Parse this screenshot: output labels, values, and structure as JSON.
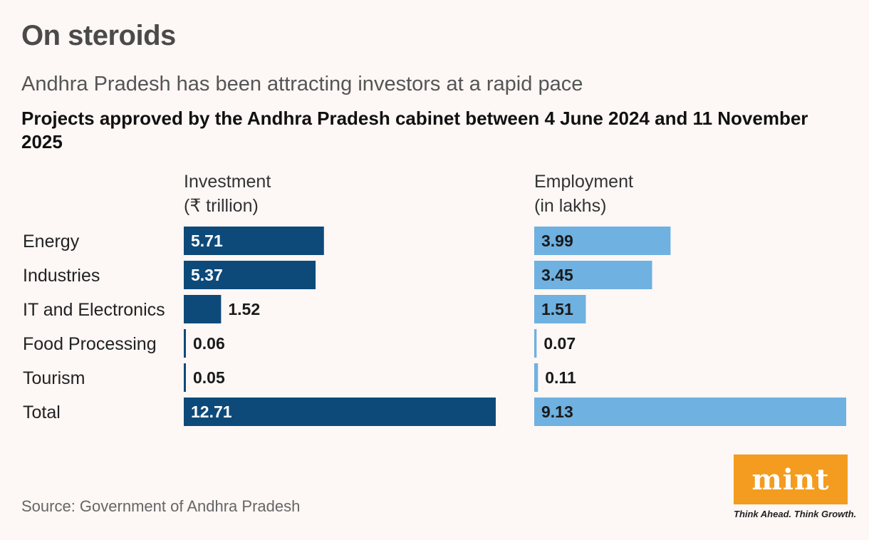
{
  "header": {
    "title": "On steroids",
    "subtitle": "Andhra Pradesh has been attracting investors at a rapid pace",
    "chart_heading": "Projects approved by the Andhra Pradesh cabinet between 4 June 2024 and 11 November 2025"
  },
  "columns": {
    "investment": {
      "line1": "Investment",
      "line2": "(₹ trillion)"
    },
    "employment": {
      "line1": "Employment",
      "line2": "(in lakhs)"
    }
  },
  "chart_data": {
    "type": "bar",
    "orientation": "horizontal",
    "categories": [
      "Energy",
      "Industries",
      "IT and Electronics",
      "Food Processing",
      "Tourism",
      "Total"
    ],
    "series": [
      {
        "name": "Investment (₹ trillion)",
        "values": [
          5.71,
          5.37,
          1.52,
          0.06,
          0.05,
          12.71
        ],
        "color": "#0d4a7a"
      },
      {
        "name": "Employment (in lakhs)",
        "values": [
          3.99,
          3.45,
          1.51,
          0.07,
          0.11,
          9.13
        ],
        "color": "#6fb1e0"
      }
    ]
  },
  "footer": {
    "source": "Source: Government of Andhra Pradesh",
    "logo_text": "mint",
    "tagline": "Think Ahead. Think Growth."
  },
  "colors": {
    "background": "#fdf7f5",
    "logo": "#f39c1f"
  }
}
